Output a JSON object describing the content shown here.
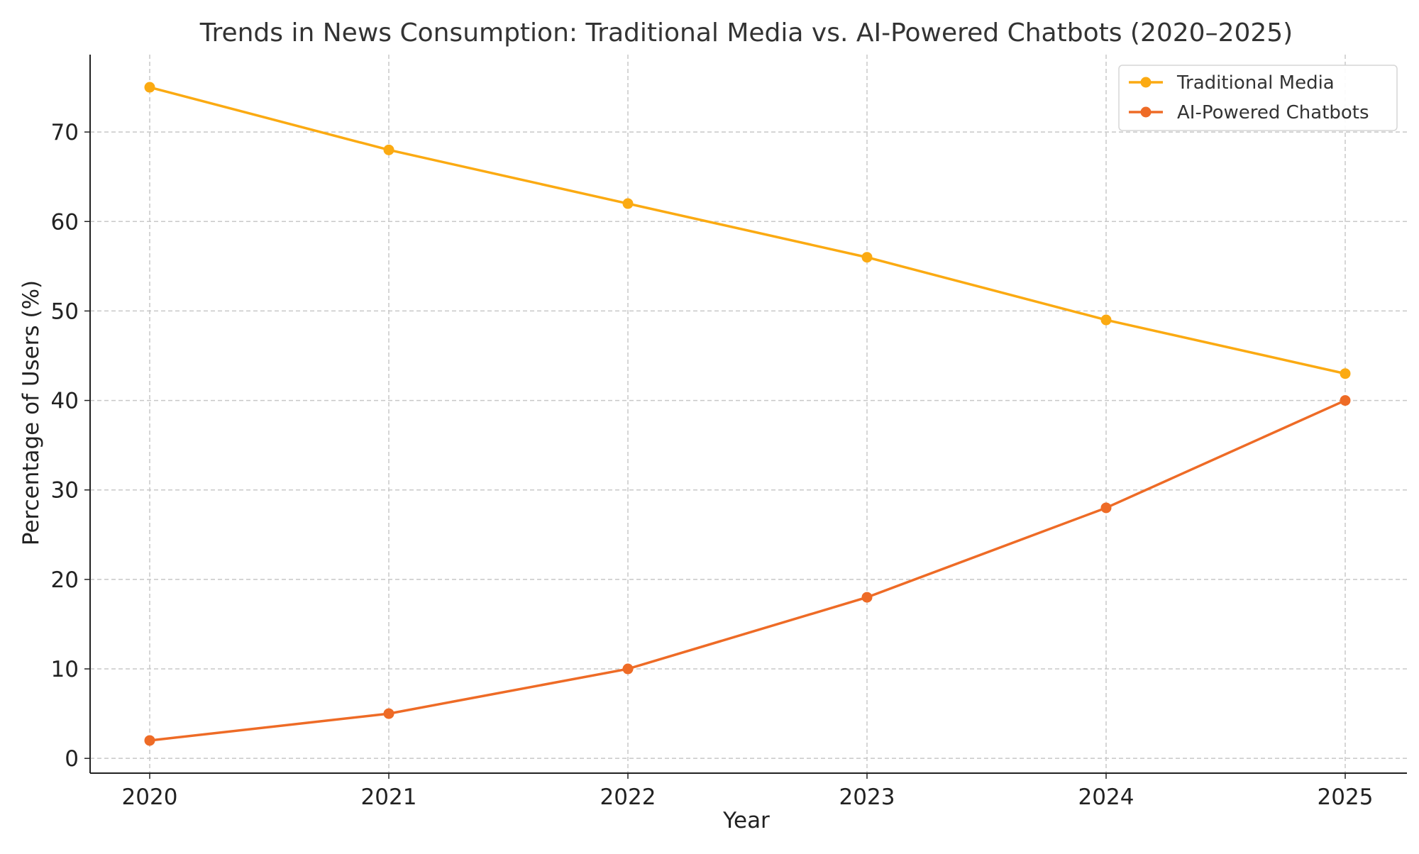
{
  "chart_data": {
    "type": "line",
    "title": "Trends in News Consumption: Traditional Media vs. AI-Powered Chatbots (2020–2025)",
    "xlabel": "Year",
    "ylabel": "Percentage of Users (%)",
    "x": [
      "2020",
      "2021",
      "2022",
      "2023",
      "2024",
      "2025"
    ],
    "y_ticks": [
      "0",
      "10",
      "20",
      "30",
      "40",
      "50",
      "60",
      "70"
    ],
    "ylim": [
      -1.65,
      78.65
    ],
    "grid": true,
    "grid_style": "dashed",
    "legend_position": "top-right",
    "series": [
      {
        "name": "Traditional Media",
        "values": [
          75,
          68,
          62,
          56,
          49,
          43
        ],
        "color": "#FBAA12",
        "marker": "circle"
      },
      {
        "name": "AI-Powered Chatbots",
        "values": [
          2,
          5,
          10,
          18,
          28,
          40
        ],
        "color": "#EE6B26",
        "marker": "circle"
      }
    ]
  }
}
